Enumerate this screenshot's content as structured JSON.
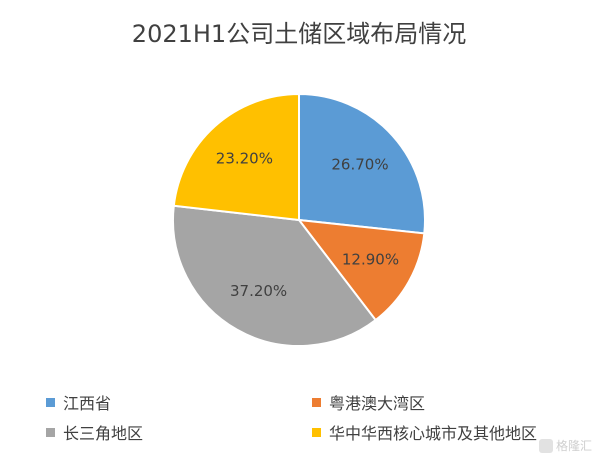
{
  "chart_data": {
    "type": "pie",
    "title": "2021H1公司土储区域布局情况",
    "categories": [
      "江西省",
      "粤港澳大湾区",
      "长三角地区",
      "华中华西核心城市及其他地区"
    ],
    "values": [
      26.7,
      12.9,
      37.2,
      23.2
    ],
    "data_labels": [
      "26.70%",
      "12.90%",
      "37.20%",
      "23.20%"
    ],
    "colors": [
      "#5B9BD5",
      "#ED7D31",
      "#A5A5A5",
      "#FFC000"
    ],
    "start_angle": "12 o'clock",
    "direction": "clockwise",
    "legend_position": "bottom"
  },
  "watermark": {
    "text": "格隆汇"
  }
}
